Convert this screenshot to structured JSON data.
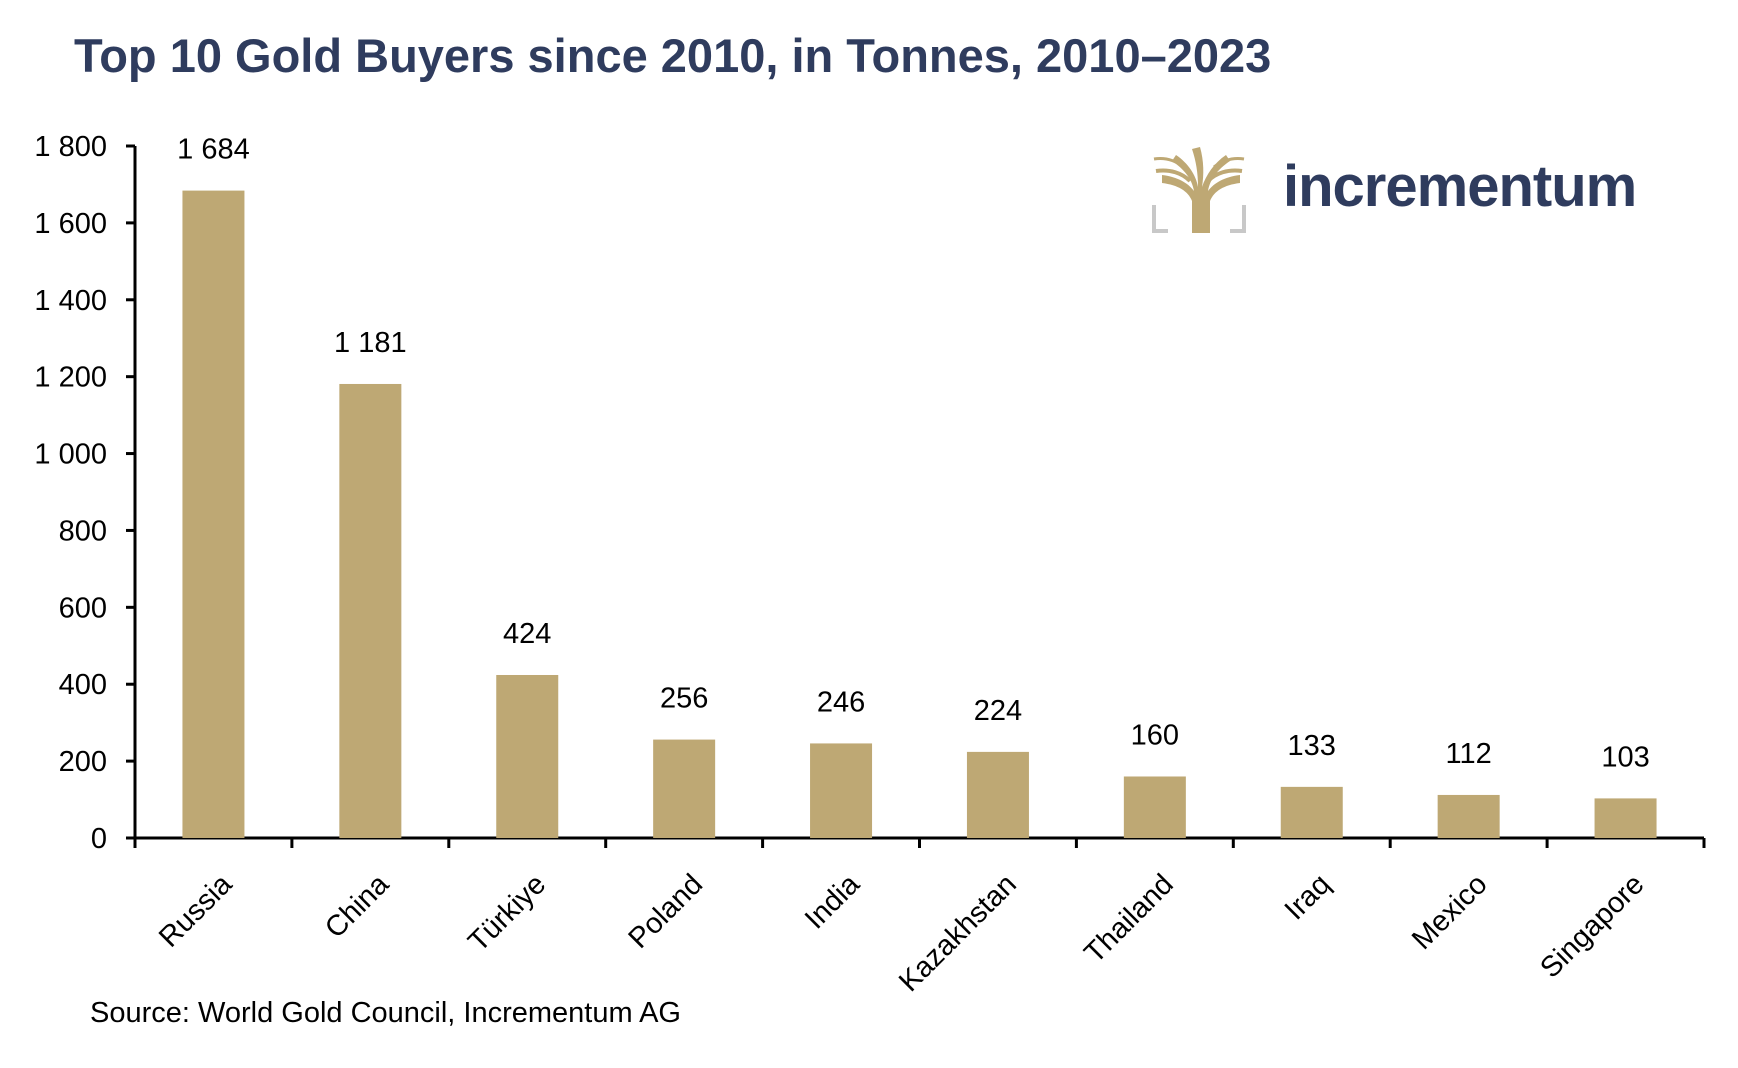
{
  "title": "Top 10 Gold Buyers since 2010, in Tonnes, 2010–2023",
  "source": "Source: World Gold Council, Incrementum AG",
  "logo": {
    "text": "incrementum",
    "icon": "tree-icon"
  },
  "colors": {
    "bar": "#bea874",
    "title": "#2f3c5e",
    "logo_gold": "#bea874",
    "logo_frame": "#c8c8c8"
  },
  "chart_data": {
    "type": "bar",
    "title": "Top 10 Gold Buyers since 2010, in Tonnes, 2010–2023",
    "xlabel": "",
    "ylabel": "",
    "categories": [
      "Russia",
      "China",
      "Türkiye",
      "Poland",
      "India",
      "Kazakhstan",
      "Thailand",
      "Iraq",
      "Mexico",
      "Singapore"
    ],
    "values": [
      1684,
      1181,
      424,
      256,
      246,
      224,
      160,
      133,
      112,
      103
    ],
    "data_labels": [
      "1 684",
      "1 181",
      "424",
      "256",
      "246",
      "224",
      "160",
      "133",
      "112",
      "103"
    ],
    "ylim": [
      0,
      1800
    ],
    "yticks": [
      0,
      200,
      400,
      600,
      800,
      1000,
      1200,
      1400,
      1600,
      1800
    ],
    "ytick_labels": [
      "0",
      "200",
      "400",
      "600",
      "800",
      "1 000",
      "1 200",
      "1 400",
      "1 600",
      "1 800"
    ],
    "grid": false,
    "legend": "none"
  }
}
